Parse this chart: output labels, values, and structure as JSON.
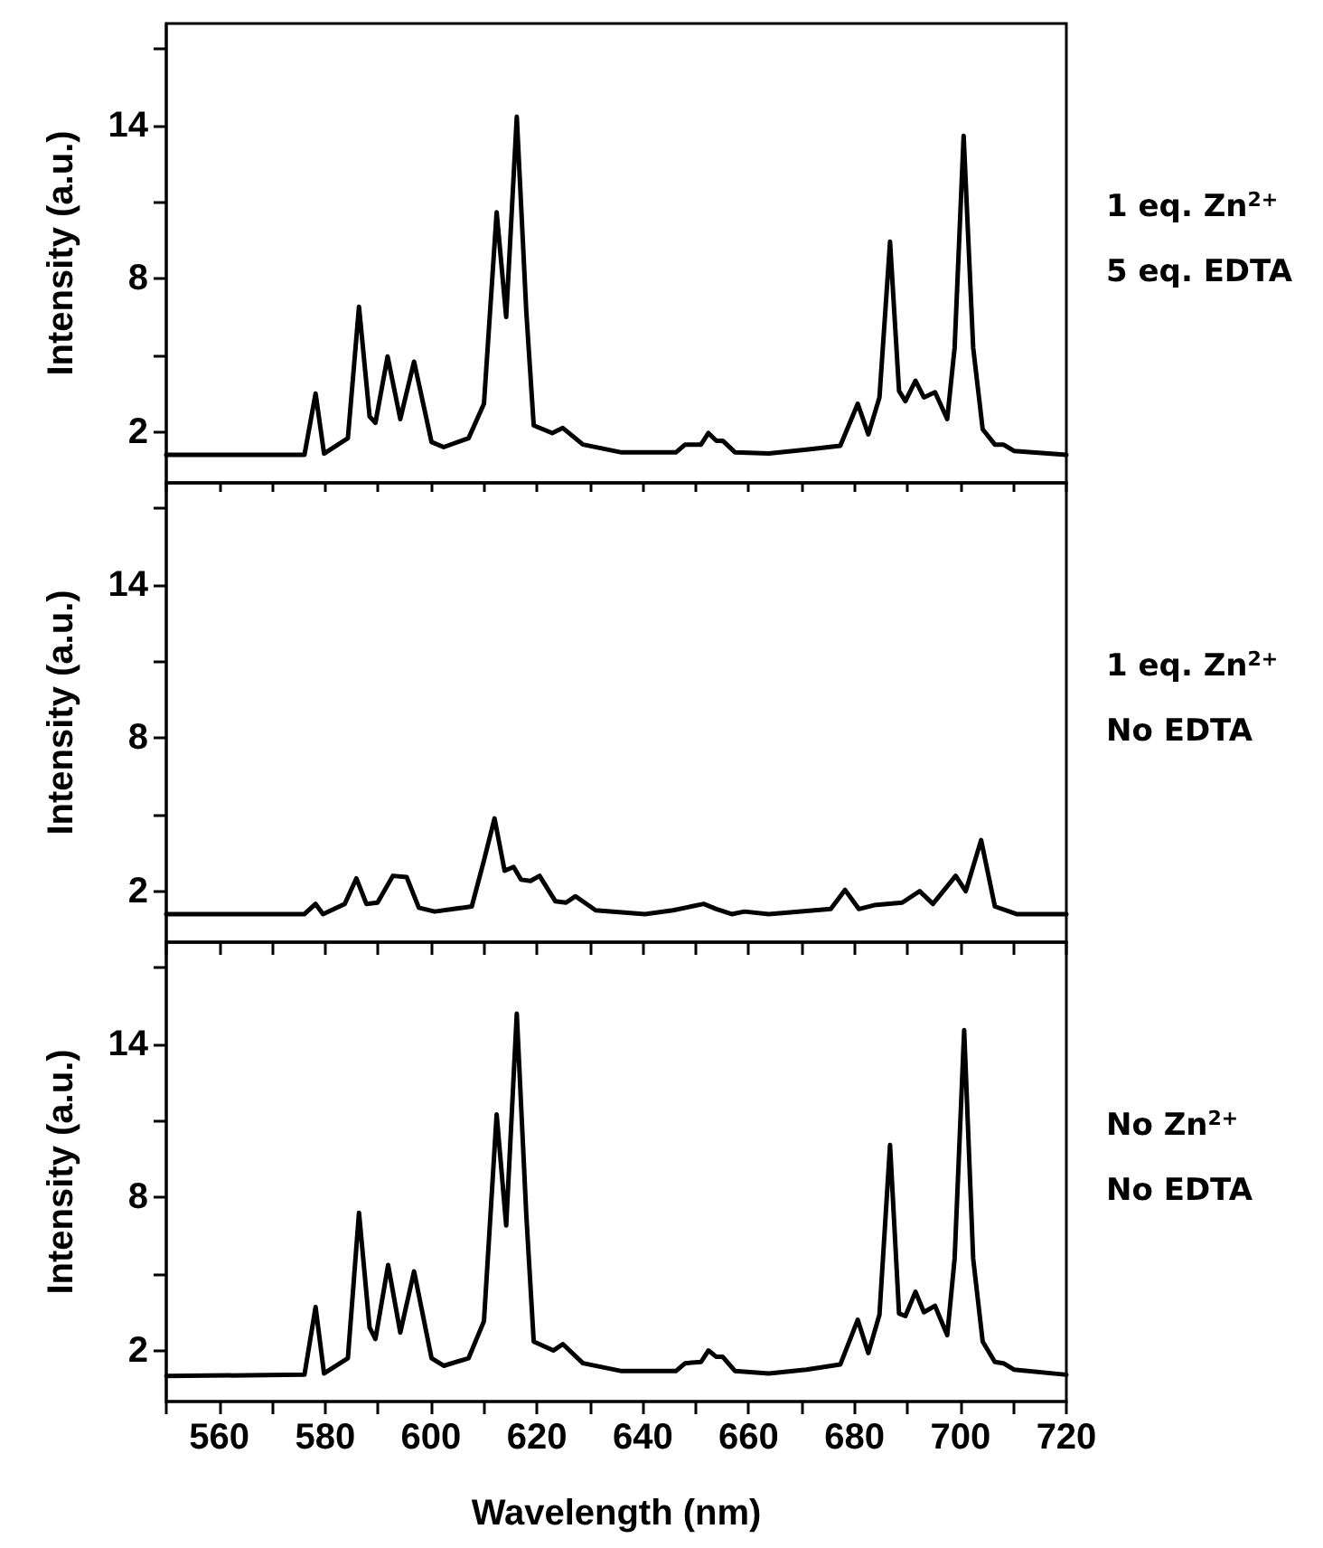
{
  "chart_data": [
    {
      "type": "line",
      "ylabel": "Intensity (a.u.)",
      "annotations": [
        "1 eq. Zn$^{2+}$",
        "5 eq. EDTA"
      ],
      "xlim": [
        550,
        720
      ],
      "xticks": [
        {
          "value": 550,
          "label": null
        },
        560,
        {
          "value": 570,
          "label": null
        },
        580,
        {
          "value": 590,
          "label": null
        },
        600,
        {
          "value": 610,
          "label": null
        },
        620,
        {
          "value": 630,
          "label": null
        },
        640,
        {
          "value": 650,
          "label": null
        },
        660,
        {
          "value": 670,
          "label": null
        },
        680,
        {
          "value": 690,
          "label": null
        },
        700,
        {
          "value": 710,
          "label": null
        },
        720
      ],
      "ylim": [
        0,
        18
      ],
      "yticks": [
        2,
        {
          "value": 5,
          "label": null
        },
        8,
        {
          "value": 11,
          "label": null
        },
        14,
        {
          "value": 17,
          "label": null
        }
      ],
      "tick_labels": "y",
      "grid": false,
      "marker": "none",
      "line_style": "solid",
      "series": [
        {
          "color": "#000000",
          "x": [
            550,
            576.1,
            578.2,
            579.8,
            584.3,
            586.4,
            588.4,
            589.5,
            591.8,
            594.2,
            596.8,
            600.1,
            602.4,
            607.1,
            610.0,
            612.4,
            614.2,
            616.2,
            618.0,
            619.4,
            622.9,
            624.9,
            628.7,
            635.8,
            646.3,
            648.0,
            651.0,
            652.4,
            653.9,
            655.1,
            657.4,
            663.8,
            670.9,
            677.3,
            680.6,
            682.6,
            684.7,
            686.7,
            688.4,
            689.6,
            691.5,
            693.1,
            695.2,
            697.5,
            698.9,
            700.6,
            702.4,
            704.2,
            706.5,
            708.1,
            710.1,
            720
          ],
          "values": [
            1.1,
            1.1,
            3.5,
            1.15,
            1.75,
            6.9,
            2.6,
            2.35,
            4.95,
            2.5,
            4.75,
            1.6,
            1.4,
            1.75,
            3.1,
            10.6,
            6.5,
            14.35,
            6.7,
            2.25,
            1.95,
            2.15,
            1.5,
            1.2,
            1.2,
            1.5,
            1.5,
            1.95,
            1.65,
            1.65,
            1.2,
            1.15,
            1.3,
            1.45,
            3.1,
            1.9,
            3.35,
            9.45,
            3.6,
            3.2,
            4.0,
            3.35,
            3.55,
            2.5,
            5.3,
            13.6,
            5.3,
            2.1,
            1.5,
            1.5,
            1.25,
            1.1
          ]
        }
      ]
    },
    {
      "type": "line",
      "ylabel": "Intensity (a.u.)",
      "annotations": [
        "1 eq. Zn$^{2+}$",
        "No EDTA"
      ],
      "xlim": [
        550,
        720
      ],
      "xticks": [
        {
          "value": 550,
          "label": null
        },
        560,
        {
          "value": 570,
          "label": null
        },
        580,
        {
          "value": 590,
          "label": null
        },
        600,
        {
          "value": 610,
          "label": null
        },
        620,
        {
          "value": 630,
          "label": null
        },
        640,
        {
          "value": 650,
          "label": null
        },
        660,
        {
          "value": 670,
          "label": null
        },
        680,
        {
          "value": 690,
          "label": null
        },
        700,
        {
          "value": 710,
          "label": null
        },
        720
      ],
      "ylim": [
        0,
        18
      ],
      "yticks": [
        2,
        {
          "value": 5,
          "label": null
        },
        8,
        {
          "value": 11,
          "label": null
        },
        14,
        {
          "value": 17,
          "label": null
        }
      ],
      "tick_labels": "y",
      "grid": false,
      "marker": "none",
      "line_style": "solid",
      "series": [
        {
          "color": "#000000",
          "x": [
            550,
            576.1,
            578.2,
            579.6,
            583.7,
            585.9,
            587.8,
            589.9,
            592.8,
            595.4,
            597.7,
            600.7,
            607.7,
            610.0,
            612.0,
            613.9,
            615.6,
            617.0,
            618.8,
            620.5,
            623.5,
            625.5,
            627.3,
            631.1,
            640.4,
            645.7,
            651.5,
            653.9,
            656.8,
            659.2,
            663.8,
            675.5,
            678.2,
            680.8,
            683.7,
            689.0,
            692.3,
            694.8,
            699.1,
            701.0,
            703.9,
            706.5,
            710.6,
            720
          ],
          "values": [
            1.1,
            1.1,
            1.5,
            1.1,
            1.5,
            2.5,
            1.5,
            1.55,
            2.6,
            2.55,
            1.35,
            1.2,
            1.4,
            3.2,
            4.85,
            2.8,
            2.95,
            2.45,
            2.4,
            2.6,
            1.6,
            1.55,
            1.8,
            1.25,
            1.1,
            1.25,
            1.5,
            1.3,
            1.1,
            1.2,
            1.1,
            1.3,
            2.05,
            1.3,
            1.45,
            1.55,
            2.0,
            1.5,
            2.6,
            2.0,
            4.0,
            1.4,
            1.1,
            1.1
          ]
        }
      ]
    },
    {
      "type": "line",
      "xlabel": "Wavelength (nm)",
      "ylabel": "Intensity (a.u.)",
      "annotations": [
        "No Zn$^{2+}$",
        "No EDTA"
      ],
      "xlim": [
        550,
        720
      ],
      "xticks": [
        {
          "value": 550,
          "label": null
        },
        560,
        {
          "value": 570,
          "label": null
        },
        580,
        {
          "value": 590,
          "label": null
        },
        600,
        {
          "value": 610,
          "label": null
        },
        620,
        {
          "value": 630,
          "label": null
        },
        640,
        {
          "value": 650,
          "label": null
        },
        660,
        {
          "value": 670,
          "label": null
        },
        680,
        {
          "value": 690,
          "label": null
        },
        700,
        {
          "value": 710,
          "label": null
        },
        720
      ],
      "ylim": [
        0,
        18
      ],
      "yticks": [
        2,
        {
          "value": 5,
          "label": null
        },
        8,
        {
          "value": 11,
          "label": null
        },
        14,
        {
          "value": 17,
          "label": null
        }
      ],
      "grid": false,
      "marker": "none",
      "line_style": "solid",
      "series": [
        {
          "color": "#000000",
          "x": [
            550,
            576.1,
            578.2,
            579.8,
            584.3,
            586.4,
            588.4,
            589.5,
            591.9,
            594.2,
            596.8,
            600.1,
            602.4,
            607.1,
            610.0,
            612.4,
            614.2,
            616.2,
            618.0,
            619.4,
            623.1,
            624.9,
            628.7,
            635.8,
            646.3,
            648.0,
            651.0,
            652.4,
            653.9,
            655.1,
            657.4,
            663.8,
            670.9,
            677.3,
            680.6,
            682.6,
            684.7,
            686.7,
            688.4,
            689.6,
            691.5,
            693.1,
            695.2,
            697.5,
            698.9,
            700.7,
            702.4,
            704.2,
            706.5,
            708.1,
            710.1,
            720
          ],
          "values": [
            1.0,
            1.05,
            3.7,
            1.1,
            1.7,
            7.4,
            2.9,
            2.45,
            5.35,
            2.7,
            5.1,
            1.7,
            1.4,
            1.7,
            3.15,
            11.25,
            6.9,
            15.2,
            7.3,
            2.35,
            2.0,
            2.25,
            1.5,
            1.2,
            1.2,
            1.5,
            1.55,
            2.0,
            1.75,
            1.75,
            1.2,
            1.1,
            1.25,
            1.45,
            3.2,
            1.9,
            3.4,
            10.05,
            3.45,
            3.35,
            4.3,
            3.5,
            3.75,
            2.6,
            5.6,
            14.55,
            5.6,
            2.35,
            1.55,
            1.5,
            1.25,
            1.05
          ]
        }
      ]
    }
  ]
}
